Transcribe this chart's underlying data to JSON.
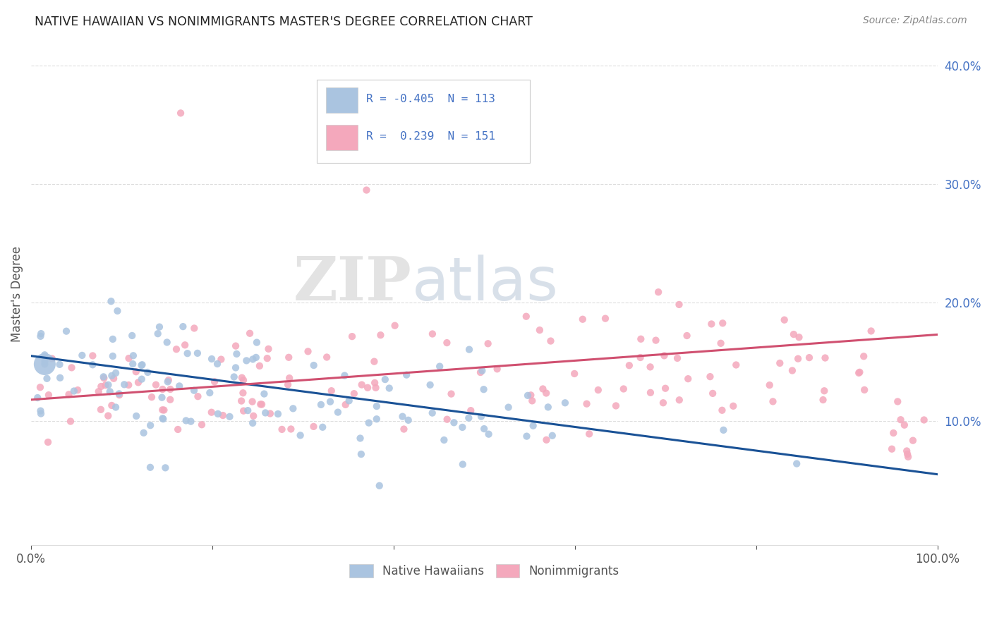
{
  "title": "NATIVE HAWAIIAN VS NONIMMIGRANTS MASTER'S DEGREE CORRELATION CHART",
  "source": "Source: ZipAtlas.com",
  "ylabel": "Master's Degree",
  "xmin": 0.0,
  "xmax": 1.0,
  "ymin": 0.0,
  "ymax": 0.42,
  "ytick_vals": [
    0.1,
    0.2,
    0.3,
    0.4
  ],
  "ytick_labels": [
    "10.0%",
    "20.0%",
    "30.0%",
    "40.0%"
  ],
  "xtick_vals": [
    0.0,
    0.2,
    0.4,
    0.6,
    0.8,
    1.0
  ],
  "xtick_labels": [
    "0.0%",
    "",
    "",
    "",
    "",
    "100.0%"
  ],
  "blue_R": -0.405,
  "blue_N": 113,
  "pink_R": 0.239,
  "pink_N": 151,
  "blue_color": "#aac4e0",
  "pink_color": "#f4a8bc",
  "blue_line_color": "#1a5296",
  "pink_line_color": "#d05070",
  "watermark_zip": "ZIP",
  "watermark_atlas": "atlas",
  "legend_label_blue": "Native Hawaiians",
  "legend_label_pink": "Nonimmigrants",
  "background_color": "#ffffff",
  "grid_color": "#dddddd",
  "title_color": "#222222",
  "axis_tick_color": "#555555",
  "right_tick_color": "#4472c4",
  "legend_border_color": "#cccccc"
}
